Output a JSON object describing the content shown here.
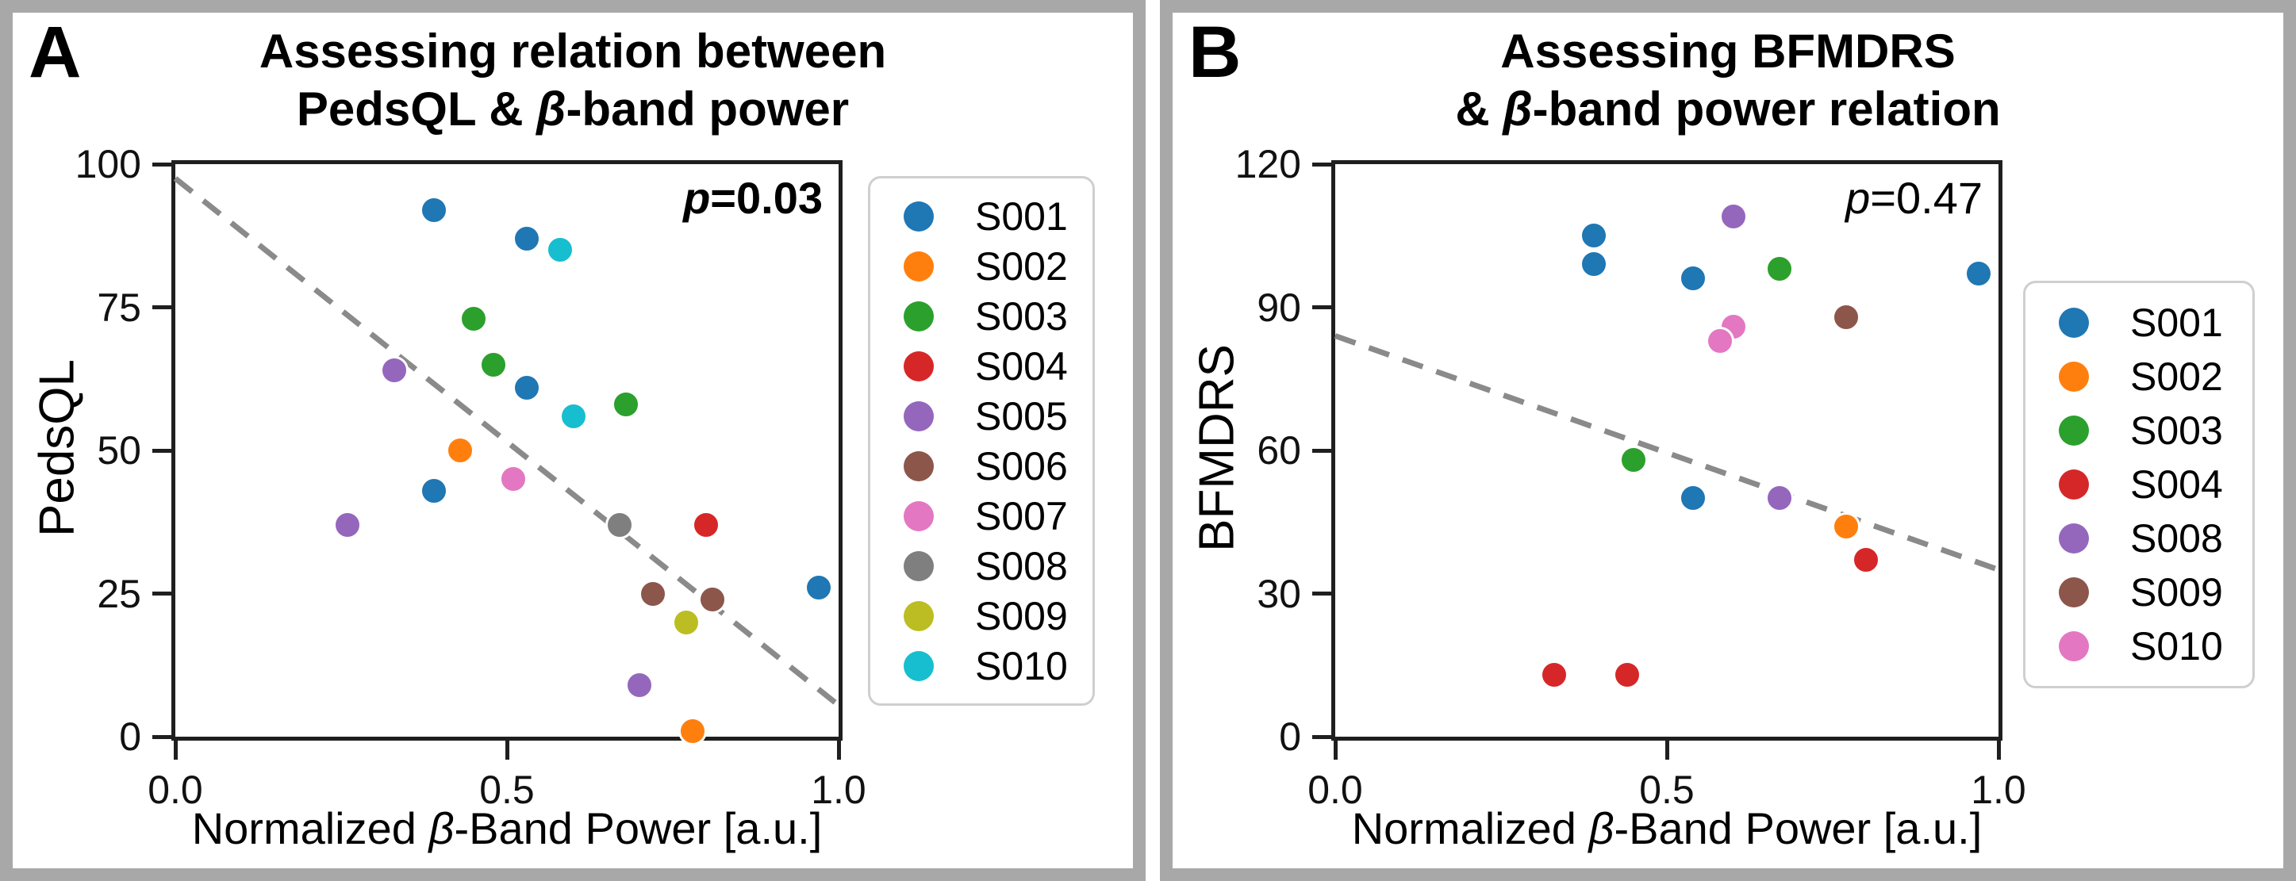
{
  "panels": [
    {
      "panel_label": "A",
      "title_line1": "Assessing relation between",
      "title_line2_pre": "PedsQL & ",
      "title_beta": "β",
      "title_line2_post": "-band power",
      "p_italic": "p",
      "p_value_text": "=0.03",
      "ylabel": "PedsQL",
      "xlabel_pre": "Normalized ",
      "xlabel_beta": "β",
      "xlabel_post": "-Band Power [a.u.]",
      "chart_data": {
        "type": "scatter",
        "title": "Assessing relation between PedsQL & β-band power",
        "xlabel": "Normalized β-Band Power [a.u.]",
        "ylabel": "PedsQL",
        "xlim": [
          0.0,
          1.0
        ],
        "ylim": [
          0,
          100
        ],
        "xticks": [
          0.0,
          0.5,
          1.0
        ],
        "xtick_labels": [
          "0.0",
          "0.5",
          "1.0"
        ],
        "yticks": [
          0,
          25,
          50,
          75,
          100
        ],
        "grid": false,
        "legend_position": "right-outside",
        "annotation": "p=0.03",
        "trend_line": {
          "style": "dashed",
          "color": "#8a8a8a",
          "x": [
            0.0,
            1.0
          ],
          "y": [
            97.5,
            5.5
          ]
        },
        "series": [
          {
            "name": "S001",
            "color": "#1f77b4",
            "points": [
              [
                0.39,
                92
              ],
              [
                0.53,
                87
              ],
              [
                0.53,
                61
              ],
              [
                0.39,
                43
              ],
              [
                0.97,
                26
              ]
            ]
          },
          {
            "name": "S002",
            "color": "#ff7f0e",
            "points": [
              [
                0.43,
                50
              ],
              [
                0.78,
                1
              ]
            ]
          },
          {
            "name": "S003",
            "color": "#2ca02c",
            "points": [
              [
                0.45,
                73
              ],
              [
                0.48,
                65
              ],
              [
                0.68,
                58
              ]
            ]
          },
          {
            "name": "S004",
            "color": "#d62728",
            "points": [
              [
                0.8,
                37
              ]
            ]
          },
          {
            "name": "S005",
            "color": "#9467bd",
            "points": [
              [
                0.33,
                64
              ],
              [
                0.26,
                37
              ],
              [
                0.7,
                9
              ]
            ]
          },
          {
            "name": "S006",
            "color": "#8c564b",
            "points": [
              [
                0.72,
                25
              ],
              [
                0.81,
                24
              ]
            ]
          },
          {
            "name": "S007",
            "color": "#e377c2",
            "points": [
              [
                0.51,
                45
              ]
            ]
          },
          {
            "name": "S008",
            "color": "#7f7f7f",
            "points": [
              [
                0.67,
                37
              ]
            ]
          },
          {
            "name": "S009",
            "color": "#bcbd22",
            "points": [
              [
                0.77,
                20
              ]
            ]
          },
          {
            "name": "S010",
            "color": "#17becf",
            "points": [
              [
                0.58,
                85
              ],
              [
                0.6,
                56
              ]
            ]
          }
        ]
      }
    },
    {
      "panel_label": "B",
      "title_line1": "Assessing BFMDRS",
      "title_line2_pre": "& ",
      "title_beta": "β",
      "title_line2_post": "-band power relation",
      "p_italic": "p",
      "p_value_text": "=0.47",
      "ylabel": "BFMDRS",
      "xlabel_pre": "Normalized ",
      "xlabel_beta": "β",
      "xlabel_post": "-Band Power [a.u.]",
      "chart_data": {
        "type": "scatter",
        "title": "Assessing BFMDRS & β-band power relation",
        "xlabel": "Normalized β-Band Power [a.u.]",
        "ylabel": "BFMDRS",
        "xlim": [
          0.0,
          1.0
        ],
        "ylim": [
          0,
          120
        ],
        "xticks": [
          0.0,
          0.5,
          1.0
        ],
        "xtick_labels": [
          "0.0",
          "0.5",
          "1.0"
        ],
        "yticks": [
          0,
          30,
          60,
          90,
          120
        ],
        "grid": false,
        "legend_position": "right-outside",
        "annotation": "p=0.47",
        "trend_line": {
          "style": "dashed",
          "color": "#8a8a8a",
          "x": [
            0.0,
            1.0
          ],
          "y": [
            84,
            35
          ]
        },
        "series": [
          {
            "name": "S001",
            "color": "#1f77b4",
            "points": [
              [
                0.39,
                105
              ],
              [
                0.39,
                99
              ],
              [
                0.54,
                96
              ],
              [
                0.97,
                97
              ],
              [
                0.54,
                50
              ]
            ]
          },
          {
            "name": "S002",
            "color": "#ff7f0e",
            "points": [
              [
                0.77,
                44
              ]
            ]
          },
          {
            "name": "S003",
            "color": "#2ca02c",
            "points": [
              [
                0.67,
                98
              ],
              [
                0.45,
                58
              ]
            ]
          },
          {
            "name": "S004",
            "color": "#d62728",
            "points": [
              [
                0.8,
                37
              ],
              [
                0.33,
                13
              ],
              [
                0.44,
                13
              ]
            ]
          },
          {
            "name": "S008",
            "color": "#9467bd",
            "points": [
              [
                0.6,
                109
              ],
              [
                0.67,
                50
              ]
            ]
          },
          {
            "name": "S009",
            "color": "#8c564b",
            "points": [
              [
                0.77,
                88
              ]
            ]
          },
          {
            "name": "S010",
            "color": "#e377c2",
            "points": [
              [
                0.6,
                86
              ],
              [
                0.58,
                83
              ]
            ]
          }
        ]
      }
    }
  ]
}
